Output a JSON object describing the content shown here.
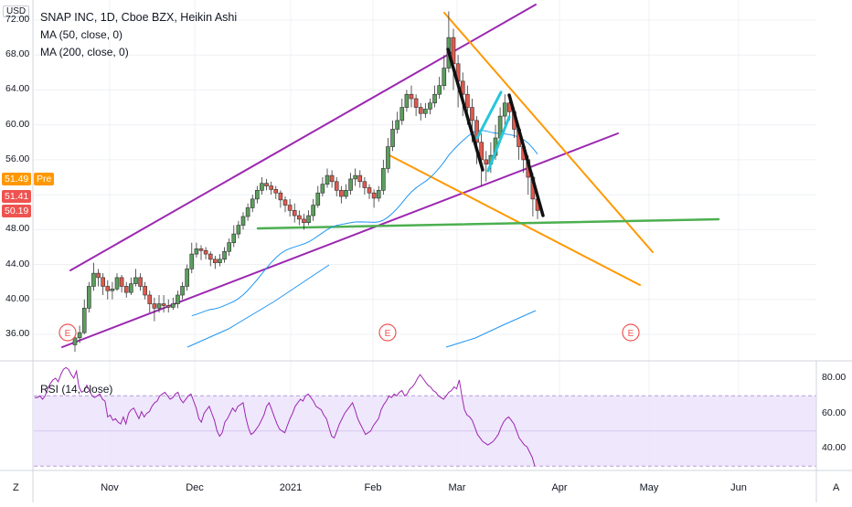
{
  "chart_data": {
    "type": "candlestick",
    "title": "SNAP INC, 1D, Cboe BZX, Heikin Ashi",
    "currency": "USD",
    "indicators": [
      "MA (50, close, 0)",
      "MA (200, close, 0)"
    ],
    "rsi_label": "RSI (14, close)",
    "price_axis": {
      "ticks": [
        "36.00",
        "40.00",
        "44.00",
        "48.00",
        "52.00",
        "56.00",
        "60.00",
        "64.00",
        "68.00",
        "72.00"
      ],
      "range": [
        35,
        74
      ]
    },
    "rsi_axis": {
      "ticks": [
        "40.00",
        "60.00",
        "80.00"
      ],
      "range": [
        28,
        92
      ],
      "band": [
        30,
        70
      ]
    },
    "time_axis": {
      "labels": [
        "Nov",
        "Dec",
        "2021",
        "Feb",
        "Mar",
        "Apr",
        "May",
        "Jun"
      ]
    },
    "corner_left": "Z",
    "corner_right": "A",
    "price_tags": [
      {
        "value": "51.49",
        "color": "#ff9800",
        "label": "Pre"
      },
      {
        "value": "51.41",
        "color": "#ef5350"
      },
      {
        "value": "50.19",
        "color": "#ef5350"
      }
    ],
    "candles": [
      [
        34.8,
        35.6,
        34.0,
        36.0
      ],
      [
        35.6,
        36.2,
        35.0,
        37.0
      ],
      [
        36.2,
        39.0,
        36.0,
        40.0
      ],
      [
        39.0,
        41.5,
        38.5,
        42.0
      ],
      [
        41.5,
        43.0,
        41.0,
        44.2
      ],
      [
        43.0,
        42.5,
        41.5,
        43.5
      ],
      [
        42.5,
        41.5,
        40.5,
        43.0
      ],
      [
        41.5,
        41.0,
        40.0,
        42.2
      ],
      [
        41.0,
        41.2,
        40.0,
        42.0
      ],
      [
        41.2,
        42.5,
        41.0,
        43.0
      ],
      [
        42.5,
        41.5,
        40.8,
        42.8
      ],
      [
        41.5,
        40.8,
        40.2,
        42.0
      ],
      [
        40.8,
        41.8,
        40.5,
        42.5
      ],
      [
        41.8,
        42.5,
        41.5,
        43.5
      ],
      [
        42.5,
        41.5,
        41.0,
        43.0
      ],
      [
        41.5,
        40.5,
        40.0,
        42.0
      ],
      [
        40.5,
        39.5,
        38.5,
        41.0
      ],
      [
        39.5,
        39.0,
        37.5,
        40.2
      ],
      [
        39.0,
        39.5,
        38.5,
        40.5
      ],
      [
        39.5,
        39.3,
        38.5,
        40.5
      ],
      [
        39.3,
        39.1,
        38.5,
        40.0
      ],
      [
        39.1,
        39.5,
        38.8,
        40.2
      ],
      [
        39.5,
        40.5,
        39.0,
        41.0
      ],
      [
        40.5,
        41.5,
        40.0,
        42.0
      ],
      [
        41.5,
        43.5,
        41.0,
        44.0
      ],
      [
        43.5,
        45.2,
        43.0,
        46.5
      ],
      [
        45.2,
        45.8,
        44.8,
        46.5
      ],
      [
        45.8,
        45.6,
        44.5,
        46.2
      ],
      [
        45.6,
        45.2,
        44.6,
        46.0
      ],
      [
        45.2,
        44.6,
        43.8,
        45.5
      ],
      [
        44.6,
        44.2,
        43.5,
        45.0
      ],
      [
        44.2,
        44.6,
        43.8,
        45.2
      ],
      [
        44.6,
        45.5,
        44.2,
        46.0
      ],
      [
        45.5,
        46.5,
        45.0,
        47.0
      ],
      [
        46.5,
        47.5,
        46.0,
        48.5
      ],
      [
        47.5,
        48.5,
        47.0,
        49.0
      ],
      [
        48.5,
        49.5,
        48.0,
        50.0
      ],
      [
        49.5,
        50.5,
        49.0,
        51.0
      ],
      [
        50.5,
        51.5,
        50.0,
        52.0
      ],
      [
        51.5,
        52.5,
        51.0,
        53.0
      ],
      [
        52.5,
        53.3,
        52.0,
        54.0
      ],
      [
        53.3,
        53.0,
        52.5,
        53.8
      ],
      [
        53.0,
        52.6,
        52.0,
        53.5
      ],
      [
        52.6,
        52.2,
        51.5,
        53.0
      ],
      [
        52.2,
        51.4,
        50.5,
        52.5
      ],
      [
        51.4,
        50.8,
        50.0,
        51.8
      ],
      [
        50.8,
        50.2,
        49.5,
        51.5
      ],
      [
        50.2,
        49.6,
        48.8,
        51.0
      ],
      [
        49.6,
        49.2,
        48.5,
        50.2
      ],
      [
        49.2,
        48.8,
        48.0,
        49.8
      ],
      [
        48.8,
        49.6,
        48.5,
        50.2
      ],
      [
        49.6,
        50.8,
        49.0,
        51.5
      ],
      [
        50.8,
        52.2,
        50.5,
        53.0
      ],
      [
        52.2,
        53.2,
        51.8,
        54.0
      ],
      [
        53.2,
        54.2,
        52.8,
        55.0
      ],
      [
        54.2,
        53.5,
        52.8,
        54.8
      ],
      [
        53.5,
        52.5,
        51.8,
        54.0
      ],
      [
        52.5,
        51.8,
        51.0,
        53.0
      ],
      [
        51.8,
        52.5,
        51.5,
        53.2
      ],
      [
        52.5,
        53.8,
        52.0,
        54.5
      ],
      [
        53.8,
        54.2,
        53.0,
        55.0
      ],
      [
        54.2,
        53.5,
        52.8,
        54.8
      ],
      [
        53.5,
        52.8,
        52.0,
        54.0
      ],
      [
        52.8,
        52.2,
        51.5,
        53.2
      ],
      [
        52.2,
        51.6,
        50.5,
        52.6
      ],
      [
        51.6,
        52.5,
        51.2,
        53.0
      ],
      [
        52.5,
        55.0,
        52.0,
        56.0
      ],
      [
        55.0,
        57.5,
        54.5,
        58.5
      ],
      [
        57.5,
        59.5,
        57.0,
        60.5
      ],
      [
        59.5,
        60.5,
        59.0,
        61.5
      ],
      [
        60.5,
        62.0,
        60.0,
        63.0
      ],
      [
        62.0,
        63.5,
        61.5,
        64.0
      ],
      [
        63.5,
        63.0,
        62.0,
        64.5
      ],
      [
        63.0,
        62.0,
        61.0,
        63.5
      ],
      [
        62.0,
        61.3,
        60.5,
        62.5
      ],
      [
        61.3,
        61.8,
        60.8,
        62.5
      ],
      [
        61.8,
        62.5,
        61.2,
        63.0
      ],
      [
        62.5,
        63.5,
        62.0,
        64.5
      ],
      [
        63.5,
        64.5,
        63.0,
        65.5
      ],
      [
        64.5,
        66.5,
        64.0,
        68.0
      ],
      [
        66.5,
        70.0,
        66.0,
        73.0
      ],
      [
        70.0,
        67.0,
        64.0,
        71.0
      ],
      [
        67.0,
        65.0,
        62.0,
        68.0
      ],
      [
        65.0,
        63.5,
        61.0,
        66.0
      ],
      [
        63.5,
        62.0,
        60.0,
        64.5
      ],
      [
        62.0,
        60.5,
        58.0,
        63.0
      ],
      [
        60.5,
        58.0,
        55.5,
        61.0
      ],
      [
        58.0,
        56.0,
        53.0,
        59.0
      ],
      [
        56.0,
        55.5,
        53.5,
        57.0
      ],
      [
        55.5,
        56.5,
        54.5,
        58.0
      ],
      [
        56.5,
        58.5,
        56.0,
        60.0
      ],
      [
        58.5,
        61.0,
        58.0,
        62.0
      ],
      [
        61.0,
        62.5,
        60.0,
        63.5
      ],
      [
        62.5,
        61.5,
        60.5,
        63.0
      ],
      [
        61.5,
        59.5,
        58.5,
        62.0
      ],
      [
        59.5,
        57.5,
        56.0,
        60.0
      ],
      [
        57.5,
        56.0,
        54.5,
        58.0
      ],
      [
        56.0,
        54.0,
        52.0,
        56.5
      ],
      [
        54.0,
        51.5,
        49.5,
        54.5
      ],
      [
        51.5,
        50.2,
        49.2,
        52.0
      ]
    ],
    "rsi_values": [
      69,
      69,
      70,
      68,
      70,
      74,
      77,
      79,
      80,
      78,
      82,
      85,
      86,
      85,
      82,
      80,
      84,
      75,
      72,
      73,
      76,
      73,
      70,
      69,
      70,
      71,
      68,
      67,
      58,
      59,
      56,
      57,
      55,
      54,
      58,
      54,
      60,
      62,
      63,
      60,
      57,
      61,
      58,
      60,
      61,
      64,
      66,
      67,
      70,
      71,
      72,
      70,
      68,
      69,
      71,
      72,
      68,
      66,
      68,
      70,
      71,
      67,
      63,
      57,
      55,
      60,
      62,
      64,
      60,
      56,
      50,
      47,
      49,
      55,
      57,
      60,
      63,
      61,
      64,
      65,
      66,
      58,
      52,
      48,
      49,
      51,
      53,
      56,
      59,
      64,
      66,
      62,
      58,
      54,
      51,
      50,
      49,
      53,
      57,
      60,
      64,
      66,
      68,
      67,
      70,
      71,
      69,
      67,
      64,
      63,
      62,
      59,
      57,
      52,
      47,
      46,
      50,
      54,
      57,
      60,
      62,
      64,
      66,
      62,
      57,
      54,
      51,
      48,
      49,
      50,
      53,
      55,
      57,
      62,
      65,
      67,
      70,
      69,
      71,
      70,
      72,
      73,
      70,
      71,
      74,
      75,
      77,
      80,
      82,
      80,
      78,
      76,
      75,
      73,
      72,
      70,
      69,
      68,
      70,
      72,
      73,
      75,
      74,
      79,
      70,
      62,
      59,
      58,
      56,
      52,
      48,
      46,
      44,
      43,
      42,
      43,
      44,
      46,
      48,
      52,
      55,
      57,
      58,
      56,
      54,
      50,
      46,
      44,
      42,
      41,
      38,
      35,
      30
    ]
  }
}
